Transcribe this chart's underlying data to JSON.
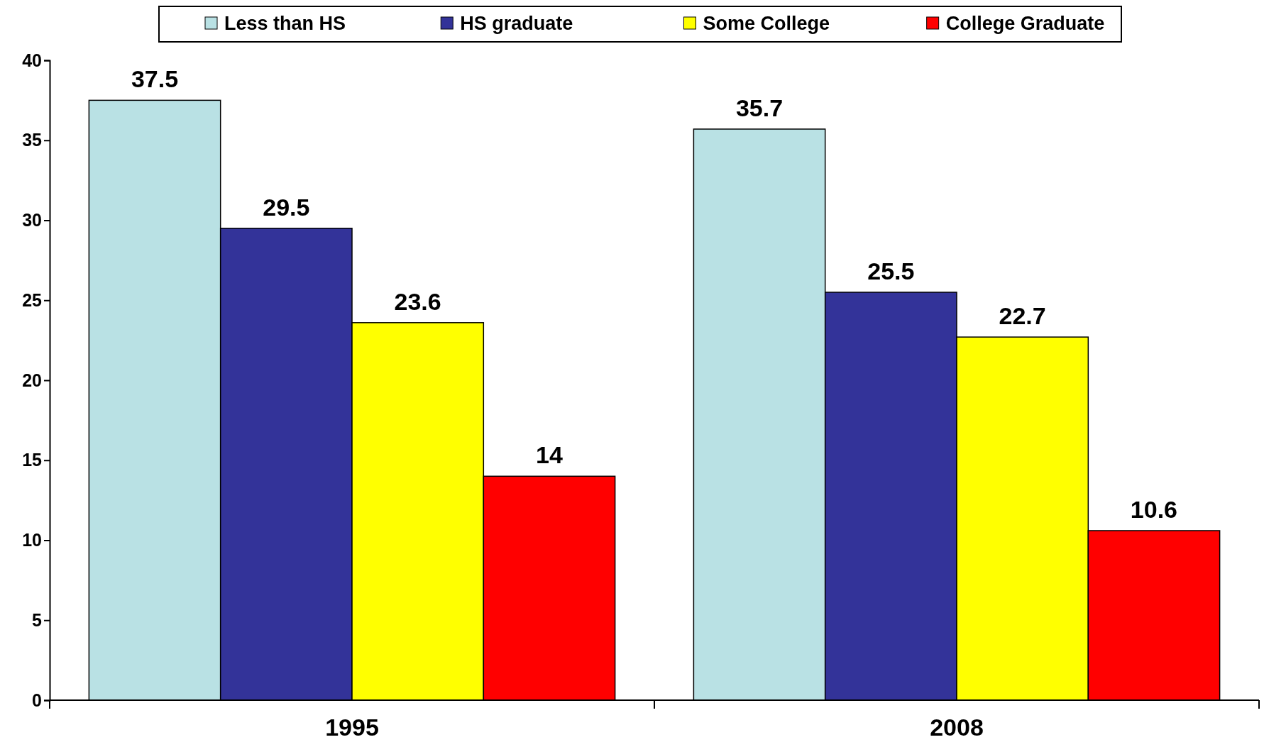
{
  "chart_data": {
    "type": "bar",
    "categories": [
      "1995",
      "2008"
    ],
    "series": [
      {
        "name": "Less than HS",
        "color": "#b9e1e4",
        "values": [
          37.5,
          35.7
        ]
      },
      {
        "name": "HS graduate",
        "color": "#333399",
        "values": [
          29.5,
          25.5
        ]
      },
      {
        "name": "Some College",
        "color": "#ffff00",
        "values": [
          23.6,
          22.7
        ]
      },
      {
        "name": "College Graduate",
        "color": "#ff0000",
        "values": [
          14,
          10.6
        ]
      }
    ],
    "ylim": [
      0,
      40
    ],
    "yticks": [
      0,
      5,
      10,
      15,
      20,
      25,
      30,
      35,
      40
    ],
    "grid": false,
    "legend": "top",
    "data_labels": true
  }
}
